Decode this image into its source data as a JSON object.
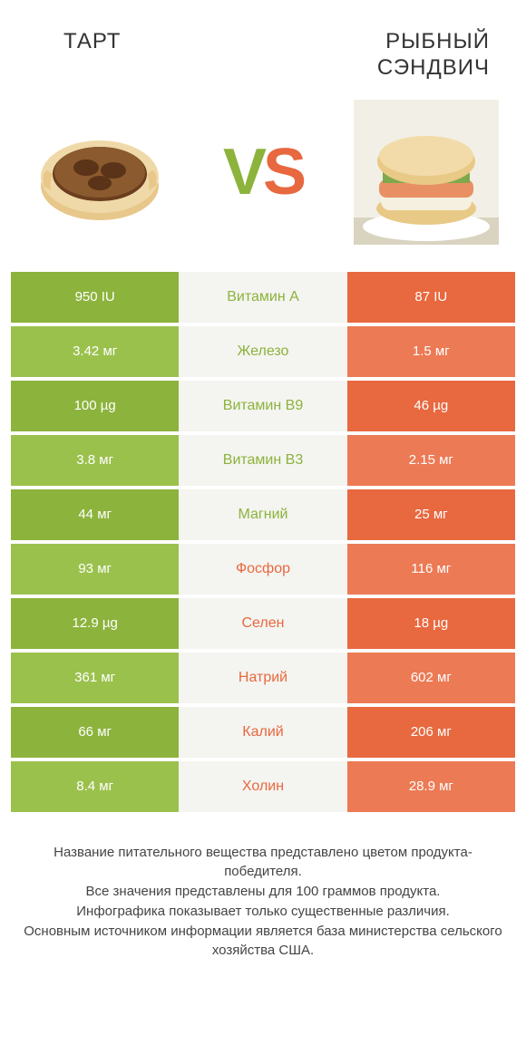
{
  "titles": {
    "left": "ТАРТ",
    "right": "РЫБНЫЙ СЭНДВИЧ"
  },
  "vs": {
    "v": "V",
    "s": "S"
  },
  "colors": {
    "green": "#8cb33c",
    "green_alt": "#9bc14d",
    "orange": "#e8683f",
    "orange_alt": "#ec7a55",
    "mid_bg": "#f4f4f0",
    "mid_text_green": "#8cb33c",
    "mid_text_orange": "#e8683f"
  },
  "rows": [
    {
      "left": "950 IU",
      "label": "Витамин A",
      "right": "87 IU",
      "winner": "left"
    },
    {
      "left": "3.42 мг",
      "label": "Железо",
      "right": "1.5 мг",
      "winner": "left"
    },
    {
      "left": "100 µg",
      "label": "Витамин B9",
      "right": "46 µg",
      "winner": "left"
    },
    {
      "left": "3.8 мг",
      "label": "Витамин B3",
      "right": "2.15 мг",
      "winner": "left"
    },
    {
      "left": "44 мг",
      "label": "Магний",
      "right": "25 мг",
      "winner": "left"
    },
    {
      "left": "93 мг",
      "label": "Фосфор",
      "right": "116 мг",
      "winner": "right"
    },
    {
      "left": "12.9 µg",
      "label": "Селен",
      "right": "18 µg",
      "winner": "right"
    },
    {
      "left": "361 мг",
      "label": "Натрий",
      "right": "602 мг",
      "winner": "right"
    },
    {
      "left": "66 мг",
      "label": "Калий",
      "right": "206 мг",
      "winner": "right"
    },
    {
      "left": "8.4 мг",
      "label": "Холин",
      "right": "28.9 мг",
      "winner": "right"
    }
  ],
  "footer_lines": [
    "Название питательного вещества представлено цветом продукта-победителя.",
    "Все значения представлены для 100 граммов продукта.",
    "Инфографика показывает только существенные различия.",
    "Основным источником информации является база министерства сельского хозяйства США."
  ]
}
